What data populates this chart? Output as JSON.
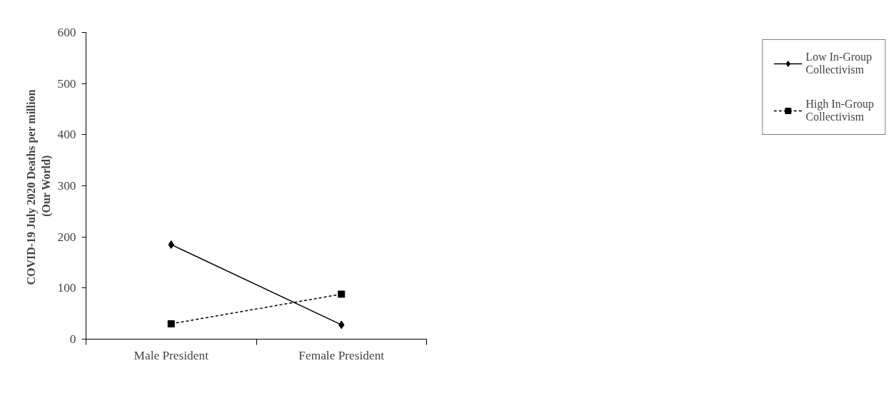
{
  "chart_data": {
    "type": "line",
    "categories": [
      "Male President",
      "Female President"
    ],
    "ylabel": "COVID-19 July 2020  Deaths per million (Our World)",
    "ylim": [
      0,
      600
    ],
    "yticks": [
      0,
      100,
      200,
      300,
      400,
      500,
      600
    ],
    "grid": false,
    "legend": "right",
    "series": [
      {
        "name": "Low In-Group Collectivism",
        "color": "#000000",
        "marker": "diamond",
        "line_style": "solid",
        "values": [
          185,
          28
        ]
      },
      {
        "name": "High In-Group Collectivism",
        "color": "#000000",
        "marker": "square",
        "line_style": "dashed",
        "values": [
          30,
          88
        ]
      }
    ]
  }
}
